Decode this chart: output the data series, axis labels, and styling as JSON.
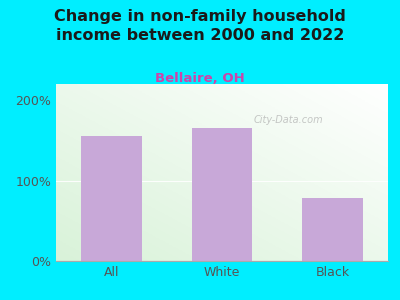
{
  "title": "Change in non-family household\nincome between 2000 and 2022",
  "subtitle": "Bellaire, OH",
  "categories": [
    "All",
    "White",
    "Black"
  ],
  "values": [
    155,
    165,
    78
  ],
  "bar_color": "#c8a8d8",
  "title_color": "#1a1a1a",
  "subtitle_color": "#cc44aa",
  "bg_color": "#00eeff",
  "tick_color": "#555555",
  "ylim": [
    0,
    220
  ],
  "yticks": [
    0,
    100,
    200
  ],
  "ytick_labels": [
    "0%",
    "100%",
    "200%"
  ],
  "watermark": "City-Data.com",
  "bar_width": 0.55,
  "title_fontsize": 11.5,
  "subtitle_fontsize": 9.5,
  "tick_fontsize": 9
}
